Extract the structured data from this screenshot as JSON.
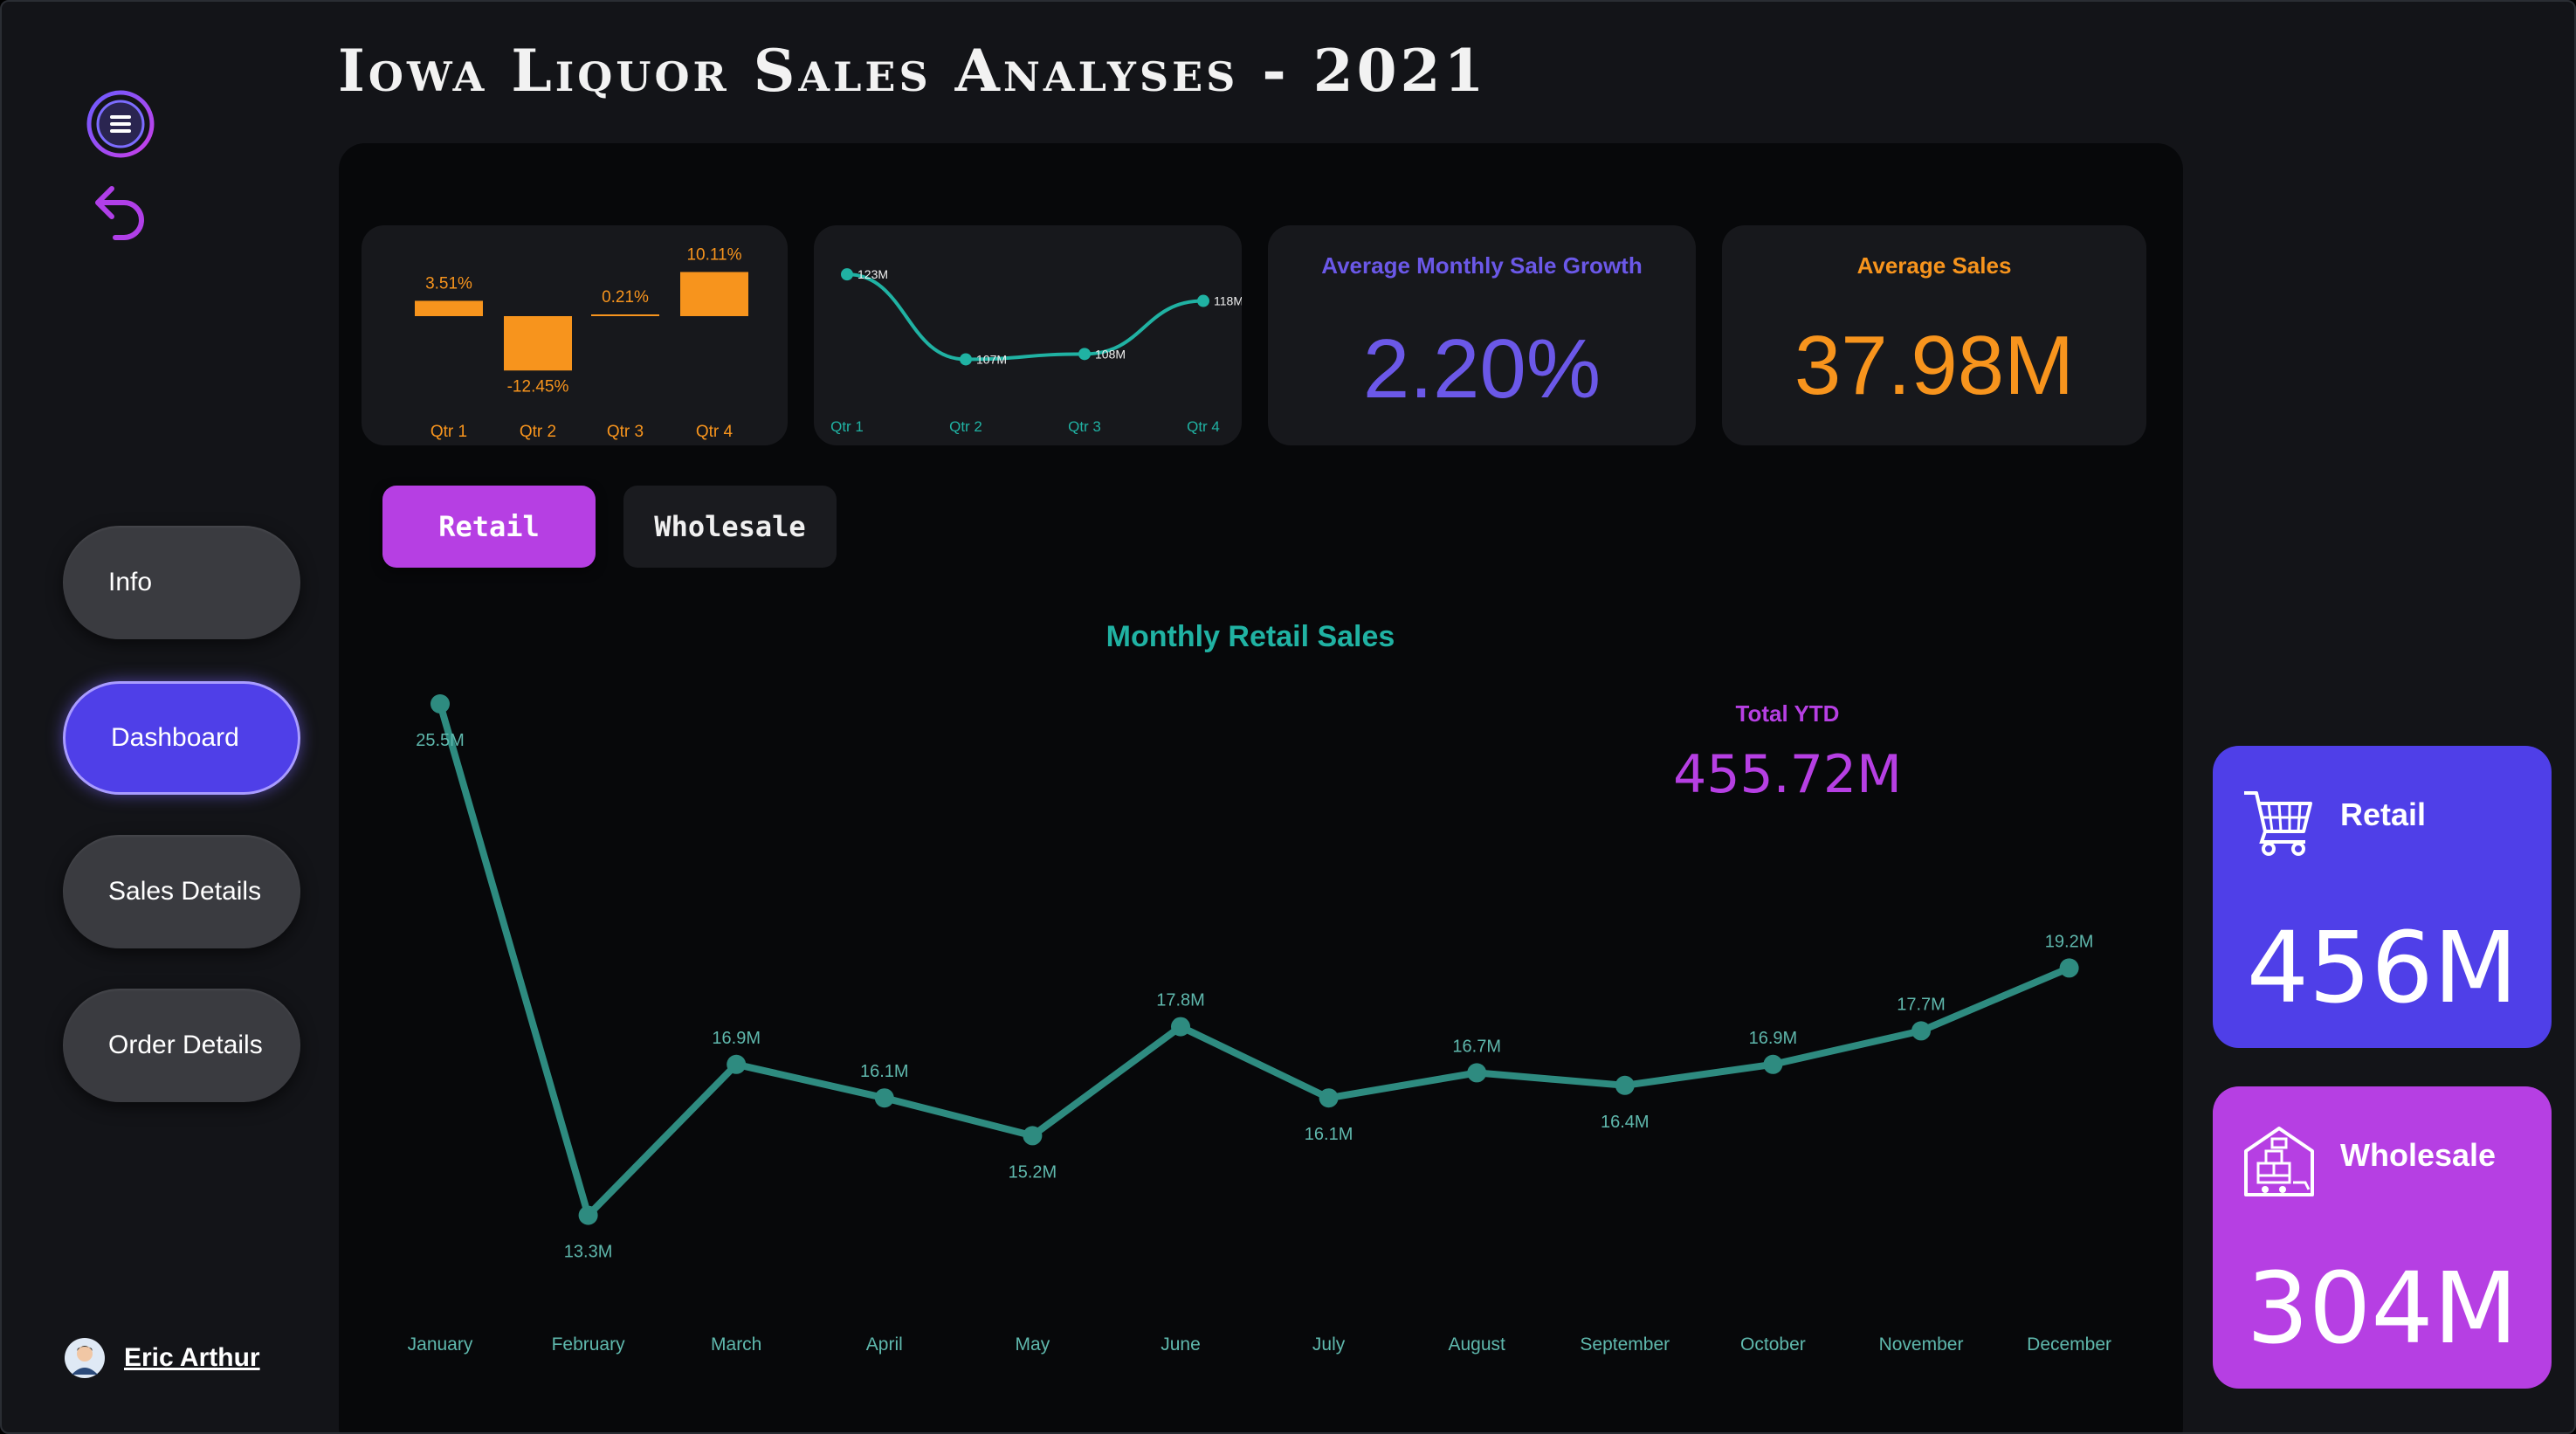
{
  "title": "Iowa Liquor Sales Analyses - 2021",
  "colors": {
    "accent_purple": "#4f3fe8",
    "accent_magenta": "#b63fe3",
    "teal": "#20b2a3",
    "orange": "#f7941d",
    "line": "#2e8b80"
  },
  "sidebar": {
    "menu_icon": "hamburger-menu-icon",
    "back_icon": "undo-arrow-icon",
    "items": [
      {
        "label": "Info"
      },
      {
        "label": "Dashboard"
      },
      {
        "label": "Sales Details"
      },
      {
        "label": "Order Details"
      }
    ],
    "user_name": "Eric Arthur"
  },
  "kpis": {
    "growth_title": "Average Monthly Sale Growth",
    "growth_value": "2.20%",
    "avg_sales_title": "Average Sales",
    "avg_sales_value": "37.98M"
  },
  "toggles": {
    "retail": "Retail",
    "wholesale": "Wholesale"
  },
  "ytd": {
    "label": "Total YTD",
    "value": "455.72M"
  },
  "side_cards": {
    "retail_label": "Retail",
    "retail_value": "456M",
    "wholesale_label": "Wholesale",
    "wholesale_value": "304M"
  },
  "chart_data": [
    {
      "type": "bar",
      "title": "",
      "categories": [
        "Qtr 1",
        "Qtr 2",
        "Qtr 3",
        "Qtr 4"
      ],
      "values": [
        3.51,
        -12.45,
        0.21,
        10.11
      ],
      "labels": [
        "3.51%",
        "-12.45%",
        "0.21%",
        "10.11%"
      ],
      "unit": "%"
    },
    {
      "type": "line",
      "title": "",
      "categories": [
        "Qtr 1",
        "Qtr 2",
        "Qtr 3",
        "Qtr 4"
      ],
      "values": [
        123,
        107,
        108,
        118
      ],
      "labels": [
        "123M",
        "107M",
        "108M",
        "118M"
      ],
      "ylim": [
        100,
        125
      ]
    },
    {
      "type": "line",
      "title": "Monthly Retail Sales",
      "categories": [
        "January",
        "February",
        "March",
        "April",
        "May",
        "June",
        "July",
        "August",
        "September",
        "October",
        "November",
        "December"
      ],
      "values": [
        25.5,
        13.3,
        16.9,
        16.1,
        15.2,
        17.8,
        16.1,
        16.7,
        16.4,
        16.9,
        17.7,
        19.2
      ],
      "labels": [
        "25.5M",
        "13.3M",
        "16.9M",
        "16.1M",
        "15.2M",
        "17.8M",
        "16.1M",
        "16.7M",
        "16.4M",
        "16.9M",
        "17.7M",
        "19.2M"
      ],
      "ylim": [
        12,
        26
      ],
      "xlabel": "",
      "ylabel": ""
    }
  ]
}
